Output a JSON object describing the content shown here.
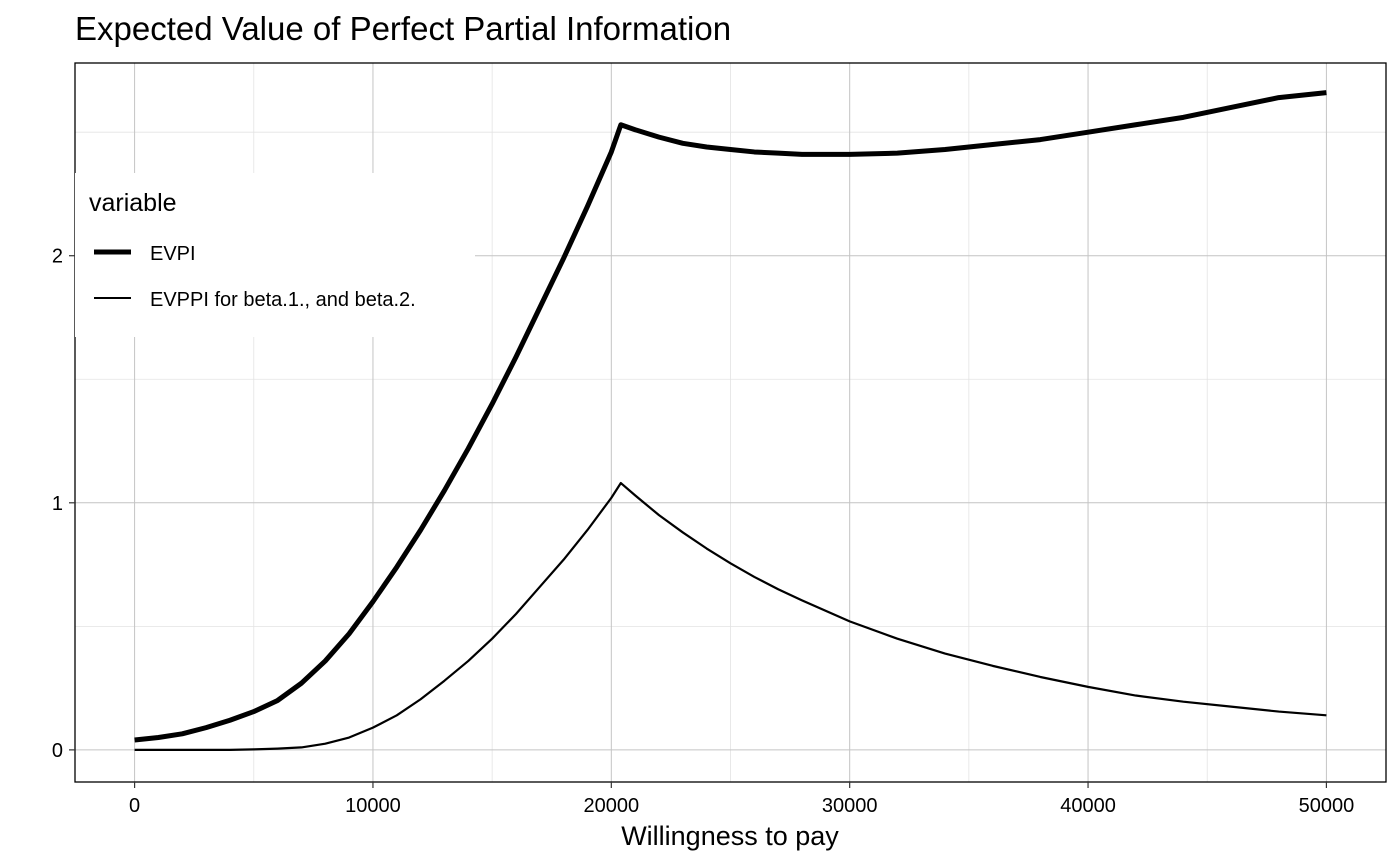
{
  "chart_data": {
    "type": "line",
    "title": "Expected Value of Perfect Partial Information",
    "xlabel": "Willingness to pay",
    "ylabel": "",
    "xlim": [
      -2500,
      52500
    ],
    "ylim": [
      -0.13,
      2.78
    ],
    "x_ticks": [
      0,
      10000,
      20000,
      30000,
      40000,
      50000
    ],
    "y_ticks": [
      0,
      1,
      2
    ],
    "x_tick_labels": [
      "0",
      "10000",
      "20000",
      "30000",
      "40000",
      "50000"
    ],
    "y_tick_labels": [
      "0",
      "1",
      "2"
    ],
    "grid": true,
    "legend": {
      "title": "variable",
      "position": "inside-top-left",
      "entries": [
        "EVPI",
        "EVPPI for beta.1., and beta.2."
      ]
    },
    "series": [
      {
        "name": "EVPI",
        "line_weight": "thick",
        "color": "#000000",
        "x": [
          0,
          1000,
          2000,
          3000,
          4000,
          5000,
          6000,
          7000,
          8000,
          9000,
          10000,
          11000,
          12000,
          13000,
          14000,
          15000,
          16000,
          17000,
          18000,
          19000,
          20000,
          20400,
          21000,
          22000,
          23000,
          24000,
          25000,
          26000,
          27000,
          28000,
          29000,
          30000,
          32000,
          34000,
          36000,
          38000,
          40000,
          42000,
          44000,
          46000,
          48000,
          50000
        ],
        "y": [
          0.04,
          0.05,
          0.065,
          0.09,
          0.12,
          0.155,
          0.2,
          0.27,
          0.36,
          0.47,
          0.6,
          0.74,
          0.89,
          1.05,
          1.22,
          1.4,
          1.59,
          1.79,
          1.99,
          2.2,
          2.42,
          2.53,
          2.51,
          2.48,
          2.455,
          2.44,
          2.43,
          2.42,
          2.415,
          2.41,
          2.41,
          2.41,
          2.415,
          2.43,
          2.45,
          2.47,
          2.5,
          2.53,
          2.56,
          2.6,
          2.64,
          2.66
        ]
      },
      {
        "name": "EVPPI for beta.1., and beta.2.",
        "line_weight": "thin",
        "color": "#000000",
        "x": [
          0,
          2000,
          4000,
          5000,
          6000,
          7000,
          8000,
          9000,
          10000,
          11000,
          12000,
          13000,
          14000,
          15000,
          16000,
          17000,
          18000,
          19000,
          20000,
          20400,
          21000,
          22000,
          23000,
          24000,
          25000,
          26000,
          27000,
          28000,
          30000,
          32000,
          34000,
          36000,
          38000,
          40000,
          42000,
          44000,
          46000,
          48000,
          50000
        ],
        "y": [
          0,
          0,
          0,
          0.002,
          0.005,
          0.01,
          0.025,
          0.05,
          0.09,
          0.14,
          0.205,
          0.28,
          0.36,
          0.45,
          0.55,
          0.66,
          0.77,
          0.89,
          1.02,
          1.08,
          1.03,
          0.95,
          0.88,
          0.815,
          0.755,
          0.7,
          0.65,
          0.605,
          0.52,
          0.45,
          0.39,
          0.34,
          0.295,
          0.255,
          0.22,
          0.195,
          0.175,
          0.155,
          0.14
        ]
      }
    ]
  }
}
